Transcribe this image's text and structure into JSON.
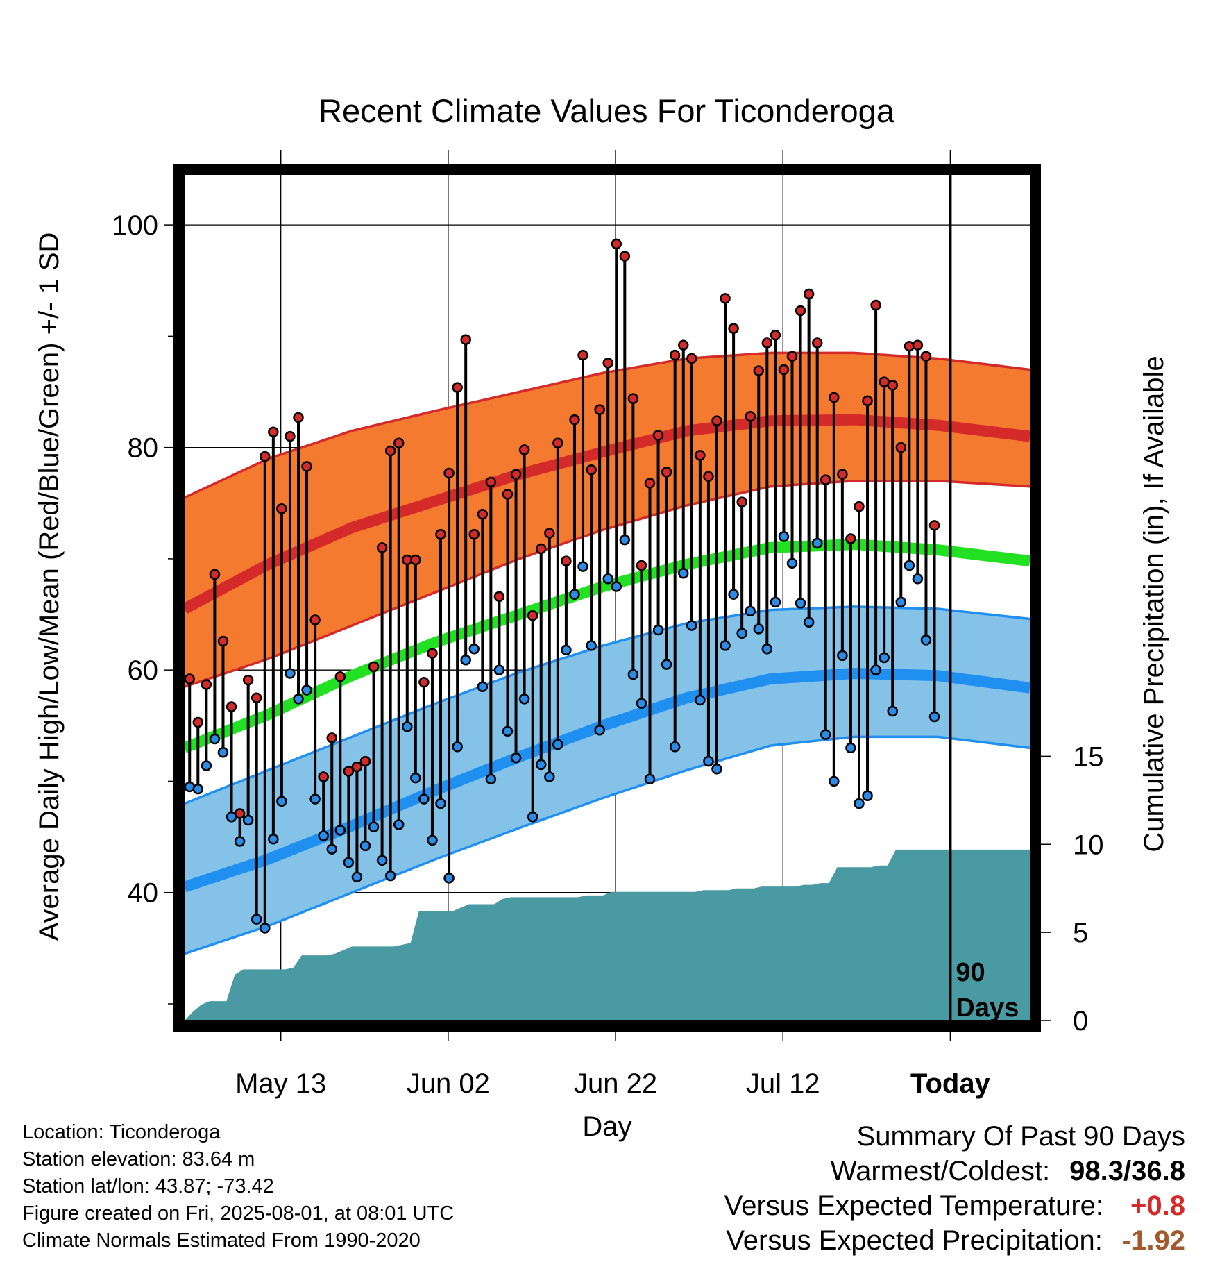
{
  "colors": {
    "high_band": "#f47a30",
    "high_edge": "#d42a2a",
    "low_band": "#84c2e8",
    "low_edge": "#2090f0",
    "mean": "#22e022",
    "precip": "#4a9aa4",
    "high_marker": "#d42a2a",
    "low_marker": "#2a8ce6",
    "pos_dep": "#d42a2a",
    "neg_dep": "#a05a2c"
  },
  "chart_data": {
    "type": "line",
    "title": "Recent Climate Values For Ticonderoga",
    "xlabel": "Day",
    "ylabel_left": "Average Daily High/Low/Mean (Red/Blue/Green) +/- 1 SD",
    "ylabel_right": "Cumulative Precipitation (in), If Available",
    "x_range": [
      0,
      101
    ],
    "today_index": 90,
    "x_ticks": [
      {
        "day": 11.5,
        "label": "May 13",
        "bold": false
      },
      {
        "day": 31.5,
        "label": "Jun 02",
        "bold": false
      },
      {
        "day": 51.5,
        "label": "Jun 22",
        "bold": false
      },
      {
        "day": 71.5,
        "label": "Jul 12",
        "bold": false
      },
      {
        "day": 91.5,
        "label": "Today",
        "bold": true
      }
    ],
    "ylim_left": [
      28.5,
      104.5
    ],
    "y_ticks_left": [
      40,
      60,
      80,
      100
    ],
    "y_minor_left": [
      30,
      50,
      70,
      90
    ],
    "ylim_right": [
      0,
      48
    ],
    "y_ticks_right": [
      0,
      5,
      10,
      15
    ],
    "today_label": [
      "90",
      "Days"
    ],
    "normals": {
      "days": [
        0,
        10,
        20,
        30,
        40,
        50,
        60,
        70,
        80,
        90,
        101
      ],
      "high_mean": [
        65.5,
        69.5,
        72.8,
        75.2,
        77.6,
        79.6,
        81.5,
        82.4,
        82.5,
        82.0,
        81.0
      ],
      "high_plus": [
        75.5,
        79.0,
        81.5,
        83.3,
        85.0,
        86.7,
        88.0,
        88.5,
        88.5,
        88.0,
        87.0
      ],
      "high_minus": [
        58.5,
        61.0,
        64.0,
        67.0,
        70.0,
        72.6,
        74.8,
        76.5,
        77.0,
        77.0,
        76.5
      ],
      "mean": [
        53.0,
        56.0,
        59.5,
        62.5,
        65.0,
        67.5,
        69.5,
        71.0,
        71.3,
        70.8,
        69.8
      ],
      "low_mean": [
        40.5,
        43.0,
        46.0,
        49.2,
        52.2,
        55.0,
        57.5,
        59.2,
        59.7,
        59.5,
        58.4
      ],
      "low_plus": [
        48.0,
        51.0,
        54.0,
        57.0,
        59.8,
        62.2,
        64.2,
        65.4,
        65.7,
        65.5,
        64.6
      ],
      "low_minus": [
        34.5,
        37.0,
        40.0,
        43.0,
        45.8,
        48.5,
        51.0,
        53.2,
        54.0,
        54.0,
        53.0
      ]
    },
    "daily_high": [
      59.2,
      55.3,
      58.7,
      68.6,
      62.6,
      56.7,
      47.1,
      59.1,
      57.5,
      79.2,
      81.4,
      74.5,
      81.0,
      82.7,
      78.3,
      64.5,
      50.4,
      53.9,
      59.4,
      50.9,
      51.3,
      51.8,
      60.3,
      71.0,
      79.7,
      80.4,
      69.9,
      69.9,
      58.9,
      61.5,
      72.2,
      77.7,
      85.4,
      89.7,
      72.2,
      74.0,
      76.9,
      66.6,
      75.8,
      77.6,
      79.8,
      64.9,
      70.9,
      72.3,
      80.4,
      69.8,
      82.5,
      88.3,
      78.0,
      83.4,
      87.6,
      98.3,
      97.2,
      84.4,
      69.4,
      76.8,
      81.1,
      77.8,
      88.3,
      89.2,
      88.0,
      79.3,
      77.4,
      82.4,
      93.4,
      90.7,
      75.1,
      82.8,
      86.9,
      89.4,
      90.1,
      87.0,
      88.2,
      92.3,
      93.8,
      89.4,
      77.1,
      84.5,
      77.6,
      71.8,
      74.7,
      84.2,
      92.8,
      85.9,
      85.6,
      80.0,
      89.1,
      89.2,
      88.2,
      73.0
    ],
    "daily_low": [
      49.5,
      49.3,
      51.4,
      53.8,
      52.6,
      46.8,
      44.6,
      46.5,
      37.6,
      36.8,
      44.8,
      48.2,
      59.7,
      57.4,
      58.2,
      48.4,
      45.1,
      43.9,
      45.6,
      42.7,
      41.4,
      44.2,
      45.9,
      42.9,
      41.5,
      46.1,
      54.9,
      50.3,
      48.4,
      44.7,
      48.0,
      41.3,
      53.1,
      60.9,
      61.9,
      58.5,
      50.2,
      60.0,
      54.5,
      52.1,
      57.4,
      46.8,
      51.5,
      50.4,
      53.3,
      61.8,
      66.8,
      69.3,
      62.2,
      54.6,
      68.2,
      67.5,
      71.7,
      59.6,
      57.0,
      50.2,
      63.6,
      60.5,
      53.1,
      68.7,
      64.0,
      57.3,
      51.8,
      51.1,
      62.2,
      66.8,
      63.3,
      65.3,
      63.7,
      61.9,
      66.1,
      72.0,
      69.6,
      66.0,
      64.3,
      71.4,
      54.2,
      50.0,
      61.3,
      53.0,
      48.0,
      48.7,
      60.0,
      61.1,
      56.3,
      66.1,
      69.4,
      68.2,
      62.7,
      55.8
    ],
    "precip_cumulative": [
      0.0,
      0.5,
      0.9,
      1.1,
      1.1,
      1.1,
      2.6,
      2.9,
      2.9,
      2.9,
      2.9,
      2.9,
      2.9,
      3.0,
      3.7,
      3.7,
      3.7,
      3.7,
      3.8,
      4.0,
      4.2,
      4.2,
      4.2,
      4.2,
      4.2,
      4.2,
      4.3,
      4.4,
      6.2,
      6.2,
      6.2,
      6.2,
      6.2,
      6.4,
      6.6,
      6.6,
      6.6,
      6.6,
      6.9,
      7.0,
      7.0,
      7.0,
      7.0,
      7.0,
      7.0,
      7.0,
      7.0,
      7.0,
      7.1,
      7.1,
      7.1,
      7.3,
      7.3,
      7.3,
      7.3,
      7.3,
      7.3,
      7.3,
      7.3,
      7.3,
      7.3,
      7.3,
      7.4,
      7.4,
      7.4,
      7.4,
      7.5,
      7.5,
      7.5,
      7.6,
      7.6,
      7.6,
      7.6,
      7.6,
      7.7,
      7.7,
      7.8,
      7.8,
      8.7,
      8.7,
      8.7,
      8.7,
      8.7,
      8.8,
      8.8,
      9.7,
      9.7,
      9.7,
      9.7,
      9.7,
      9.7,
      9.7,
      9.7,
      9.7,
      9.7,
      9.7,
      9.7,
      9.7,
      9.7,
      9.7,
      9.7
    ]
  },
  "info": {
    "location": "Location: Ticonderoga",
    "elevation": "Station elevation: 83.64 m",
    "latlon": "Station lat/lon: 43.87; -73.42",
    "created": "Figure created on Fri, 2025-08-01, at 08:01 UTC",
    "normals": "Climate Normals Estimated From 1990-2020"
  },
  "summary": {
    "heading": "Summary Of Past 90 Days",
    "warm_cold_label": "Warmest/Coldest:",
    "warm_cold_value": "98.3/36.8",
    "temp_label": "Versus Expected Temperature:",
    "temp_value": "+0.8",
    "precip_label": "Versus Expected Precipitation:",
    "precip_value": "-1.92"
  }
}
